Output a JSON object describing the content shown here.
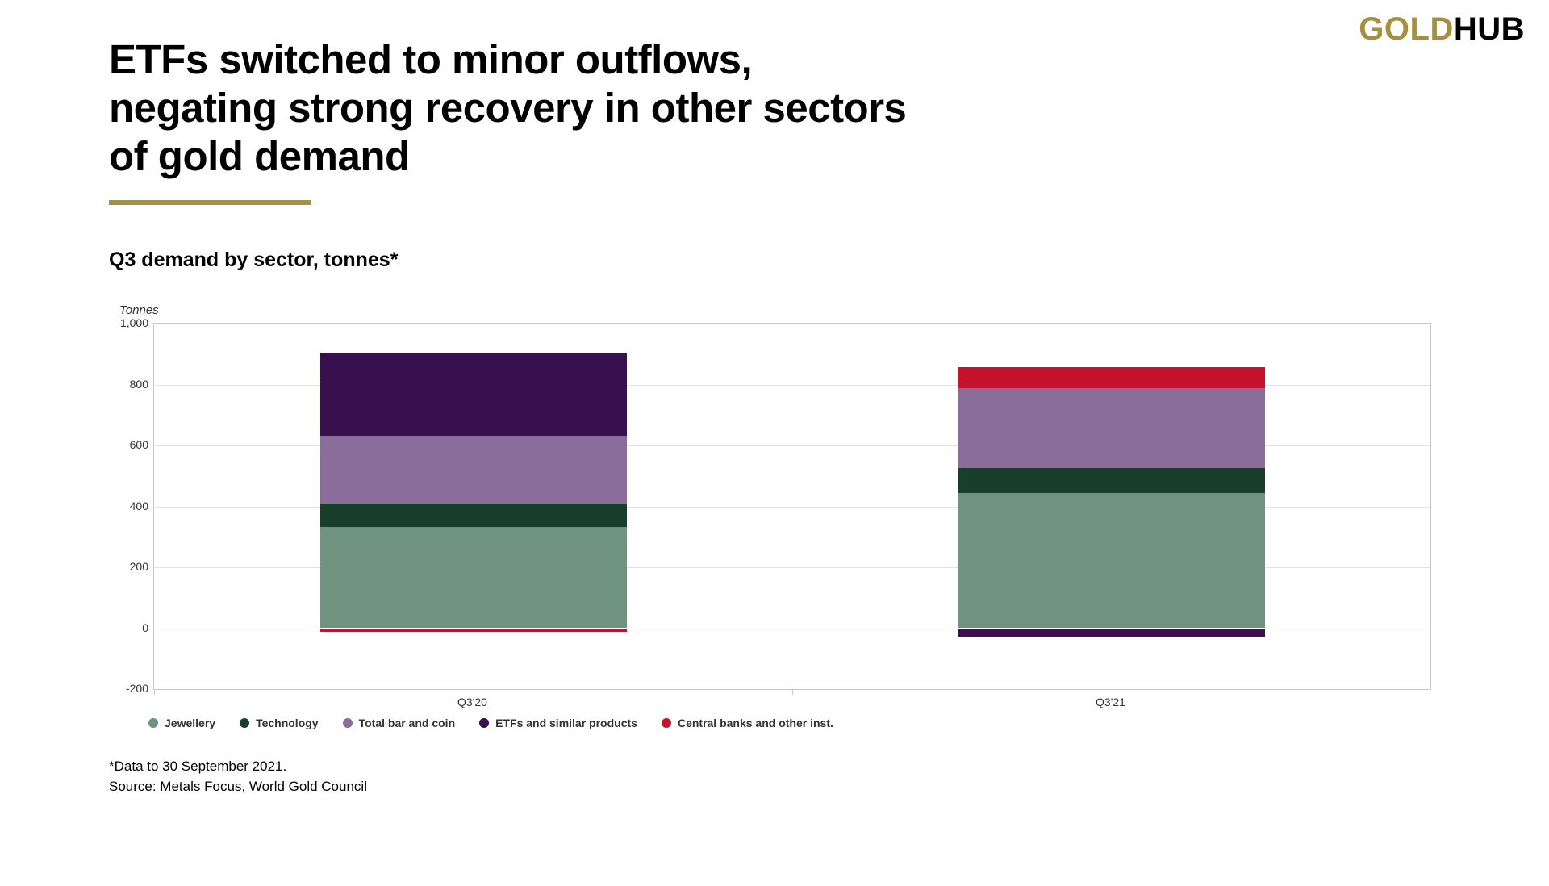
{
  "logo": {
    "gold": "GOLD",
    "hub": "HUB"
  },
  "header": {
    "title": "ETFs switched to minor outflows,\nnegating strong recovery in other sectors\nof gold demand",
    "subtitle": "Q3 demand by sector, tonnes*"
  },
  "chart_data": {
    "type": "bar",
    "stacked": true,
    "title": "Q3 demand by sector, tonnes*",
    "xlabel": "",
    "ylabel": "Tonnes",
    "ylim": [
      -200,
      1000
    ],
    "yticks": [
      {
        "value": -200,
        "label": "-200"
      },
      {
        "value": 0,
        "label": "0"
      },
      {
        "value": 200,
        "label": "200"
      },
      {
        "value": 400,
        "label": "400"
      },
      {
        "value": 600,
        "label": "600"
      },
      {
        "value": 800,
        "label": "800"
      },
      {
        "value": 1000,
        "label": "1,000"
      }
    ],
    "categories": [
      "Q3'20",
      "Q3'21"
    ],
    "series": [
      {
        "name": "Jewellery",
        "color": "#70937F",
        "values": [
          333,
          443
        ]
      },
      {
        "name": "Technology",
        "color": "#173F2C",
        "values": [
          77,
          84
        ]
      },
      {
        "name": "Total bar and coin",
        "color": "#8A6D9B",
        "values": [
          222,
          262
        ]
      },
      {
        "name": "ETFs and similar products",
        "color": "#38104E",
        "values": [
          273,
          -27
        ]
      },
      {
        "name": "Central banks and other inst.",
        "color": "#C5132D",
        "values": [
          -11,
          69
        ]
      }
    ],
    "legend_position": "bottom",
    "grid": true
  },
  "footer": {
    "note": "*Data to 30 September 2021.",
    "source": "Source: Metals Focus, World Gold Council"
  },
  "colors": {
    "accent_gold": "#A3914B",
    "logo_gold": "#A68F3F"
  }
}
